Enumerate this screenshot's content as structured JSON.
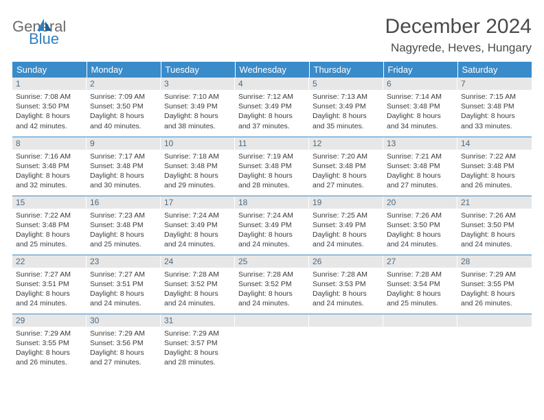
{
  "logo": {
    "line1": "General",
    "line2": "Blue"
  },
  "title": "December 2024",
  "location": "Nagyrede, Heves, Hungary",
  "colors": {
    "header_bg": "#3a8bc9",
    "header_text": "#ffffff",
    "daynum_bg": "#e7e7e7",
    "daynum_text": "#4a6a84",
    "rule": "#3a8bc9",
    "logo_gray": "#6a6a6a",
    "logo_blue": "#2f7fc2"
  },
  "weekdays": [
    "Sunday",
    "Monday",
    "Tuesday",
    "Wednesday",
    "Thursday",
    "Friday",
    "Saturday"
  ],
  "weeks": [
    [
      {
        "n": "1",
        "sr": "7:08 AM",
        "ss": "3:50 PM",
        "dl": "8 hours and 42 minutes."
      },
      {
        "n": "2",
        "sr": "7:09 AM",
        "ss": "3:50 PM",
        "dl": "8 hours and 40 minutes."
      },
      {
        "n": "3",
        "sr": "7:10 AM",
        "ss": "3:49 PM",
        "dl": "8 hours and 38 minutes."
      },
      {
        "n": "4",
        "sr": "7:12 AM",
        "ss": "3:49 PM",
        "dl": "8 hours and 37 minutes."
      },
      {
        "n": "5",
        "sr": "7:13 AM",
        "ss": "3:49 PM",
        "dl": "8 hours and 35 minutes."
      },
      {
        "n": "6",
        "sr": "7:14 AM",
        "ss": "3:48 PM",
        "dl": "8 hours and 34 minutes."
      },
      {
        "n": "7",
        "sr": "7:15 AM",
        "ss": "3:48 PM",
        "dl": "8 hours and 33 minutes."
      }
    ],
    [
      {
        "n": "8",
        "sr": "7:16 AM",
        "ss": "3:48 PM",
        "dl": "8 hours and 32 minutes."
      },
      {
        "n": "9",
        "sr": "7:17 AM",
        "ss": "3:48 PM",
        "dl": "8 hours and 30 minutes."
      },
      {
        "n": "10",
        "sr": "7:18 AM",
        "ss": "3:48 PM",
        "dl": "8 hours and 29 minutes."
      },
      {
        "n": "11",
        "sr": "7:19 AM",
        "ss": "3:48 PM",
        "dl": "8 hours and 28 minutes."
      },
      {
        "n": "12",
        "sr": "7:20 AM",
        "ss": "3:48 PM",
        "dl": "8 hours and 27 minutes."
      },
      {
        "n": "13",
        "sr": "7:21 AM",
        "ss": "3:48 PM",
        "dl": "8 hours and 27 minutes."
      },
      {
        "n": "14",
        "sr": "7:22 AM",
        "ss": "3:48 PM",
        "dl": "8 hours and 26 minutes."
      }
    ],
    [
      {
        "n": "15",
        "sr": "7:22 AM",
        "ss": "3:48 PM",
        "dl": "8 hours and 25 minutes."
      },
      {
        "n": "16",
        "sr": "7:23 AM",
        "ss": "3:48 PM",
        "dl": "8 hours and 25 minutes."
      },
      {
        "n": "17",
        "sr": "7:24 AM",
        "ss": "3:49 PM",
        "dl": "8 hours and 24 minutes."
      },
      {
        "n": "18",
        "sr": "7:24 AM",
        "ss": "3:49 PM",
        "dl": "8 hours and 24 minutes."
      },
      {
        "n": "19",
        "sr": "7:25 AM",
        "ss": "3:49 PM",
        "dl": "8 hours and 24 minutes."
      },
      {
        "n": "20",
        "sr": "7:26 AM",
        "ss": "3:50 PM",
        "dl": "8 hours and 24 minutes."
      },
      {
        "n": "21",
        "sr": "7:26 AM",
        "ss": "3:50 PM",
        "dl": "8 hours and 24 minutes."
      }
    ],
    [
      {
        "n": "22",
        "sr": "7:27 AM",
        "ss": "3:51 PM",
        "dl": "8 hours and 24 minutes."
      },
      {
        "n": "23",
        "sr": "7:27 AM",
        "ss": "3:51 PM",
        "dl": "8 hours and 24 minutes."
      },
      {
        "n": "24",
        "sr": "7:28 AM",
        "ss": "3:52 PM",
        "dl": "8 hours and 24 minutes."
      },
      {
        "n": "25",
        "sr": "7:28 AM",
        "ss": "3:52 PM",
        "dl": "8 hours and 24 minutes."
      },
      {
        "n": "26",
        "sr": "7:28 AM",
        "ss": "3:53 PM",
        "dl": "8 hours and 24 minutes."
      },
      {
        "n": "27",
        "sr": "7:28 AM",
        "ss": "3:54 PM",
        "dl": "8 hours and 25 minutes."
      },
      {
        "n": "28",
        "sr": "7:29 AM",
        "ss": "3:55 PM",
        "dl": "8 hours and 26 minutes."
      }
    ],
    [
      {
        "n": "29",
        "sr": "7:29 AM",
        "ss": "3:55 PM",
        "dl": "8 hours and 26 minutes."
      },
      {
        "n": "30",
        "sr": "7:29 AM",
        "ss": "3:56 PM",
        "dl": "8 hours and 27 minutes."
      },
      {
        "n": "31",
        "sr": "7:29 AM",
        "ss": "3:57 PM",
        "dl": "8 hours and 28 minutes."
      },
      {
        "empty": true
      },
      {
        "empty": true
      },
      {
        "empty": true
      },
      {
        "empty": true
      }
    ]
  ],
  "labels": {
    "sunrise": "Sunrise:",
    "sunset": "Sunset:",
    "daylight": "Daylight:"
  }
}
